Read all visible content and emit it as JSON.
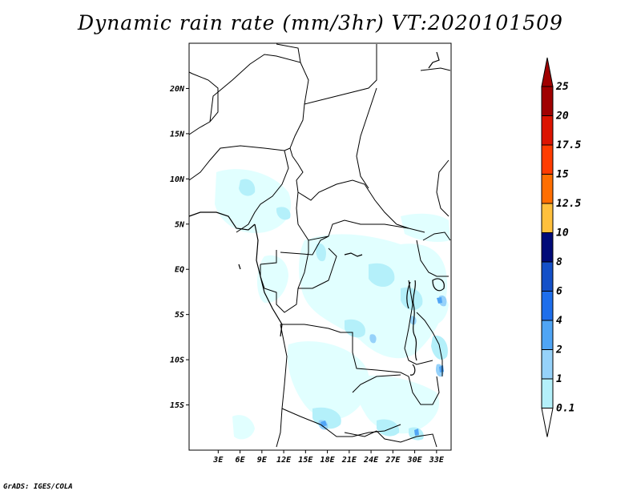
{
  "title": "Dynamic rain rate (mm/3hr) VT:2020101509",
  "credit": "GrADS: IGES/COLA",
  "map": {
    "lon_range": [
      -1,
      35
    ],
    "lat_range": [
      -20,
      25
    ],
    "lat_ticks": [
      {
        "value": 20,
        "label": "20N"
      },
      {
        "value": 15,
        "label": "15N"
      },
      {
        "value": 10,
        "label": "10N"
      },
      {
        "value": 5,
        "label": "5N"
      },
      {
        "value": 0,
        "label": "EQ"
      },
      {
        "value": -5,
        "label": "5S"
      },
      {
        "value": -10,
        "label": "10S"
      },
      {
        "value": -15,
        "label": "15S"
      }
    ],
    "lon_ticks": [
      {
        "value": 3,
        "label": "3E"
      },
      {
        "value": 6,
        "label": "6E"
      },
      {
        "value": 9,
        "label": "9E"
      },
      {
        "value": 12,
        "label": "12E"
      },
      {
        "value": 15,
        "label": "15E"
      },
      {
        "value": 18,
        "label": "18E"
      },
      {
        "value": 21,
        "label": "21E"
      },
      {
        "value": 24,
        "label": "24E"
      },
      {
        "value": 27,
        "label": "27E"
      },
      {
        "value": 30,
        "label": "30E"
      },
      {
        "value": 33,
        "label": "33E"
      }
    ]
  },
  "colorbar": {
    "levels": [
      {
        "label": "0.1",
        "color": "#e1ffff"
      },
      {
        "label": "1",
        "color": "#b4f0fa"
      },
      {
        "label": "2",
        "color": "#96d2fa"
      },
      {
        "label": "4",
        "color": "#50a5f5"
      },
      {
        "label": "6",
        "color": "#1e6eeb"
      },
      {
        "label": "8",
        "color": "#1450c8"
      },
      {
        "label": "10",
        "color": "#000a78"
      },
      {
        "label": "12.5",
        "color": "#ffc03c"
      },
      {
        "label": "15",
        "color": "#ff6e00"
      },
      {
        "label": "17.5",
        "color": "#ff3c00"
      },
      {
        "label": "20",
        "color": "#dc1400"
      },
      {
        "label": "25",
        "color": "#a00000"
      }
    ],
    "top_color": "#a00000",
    "bottom_color": "#ffffff"
  }
}
